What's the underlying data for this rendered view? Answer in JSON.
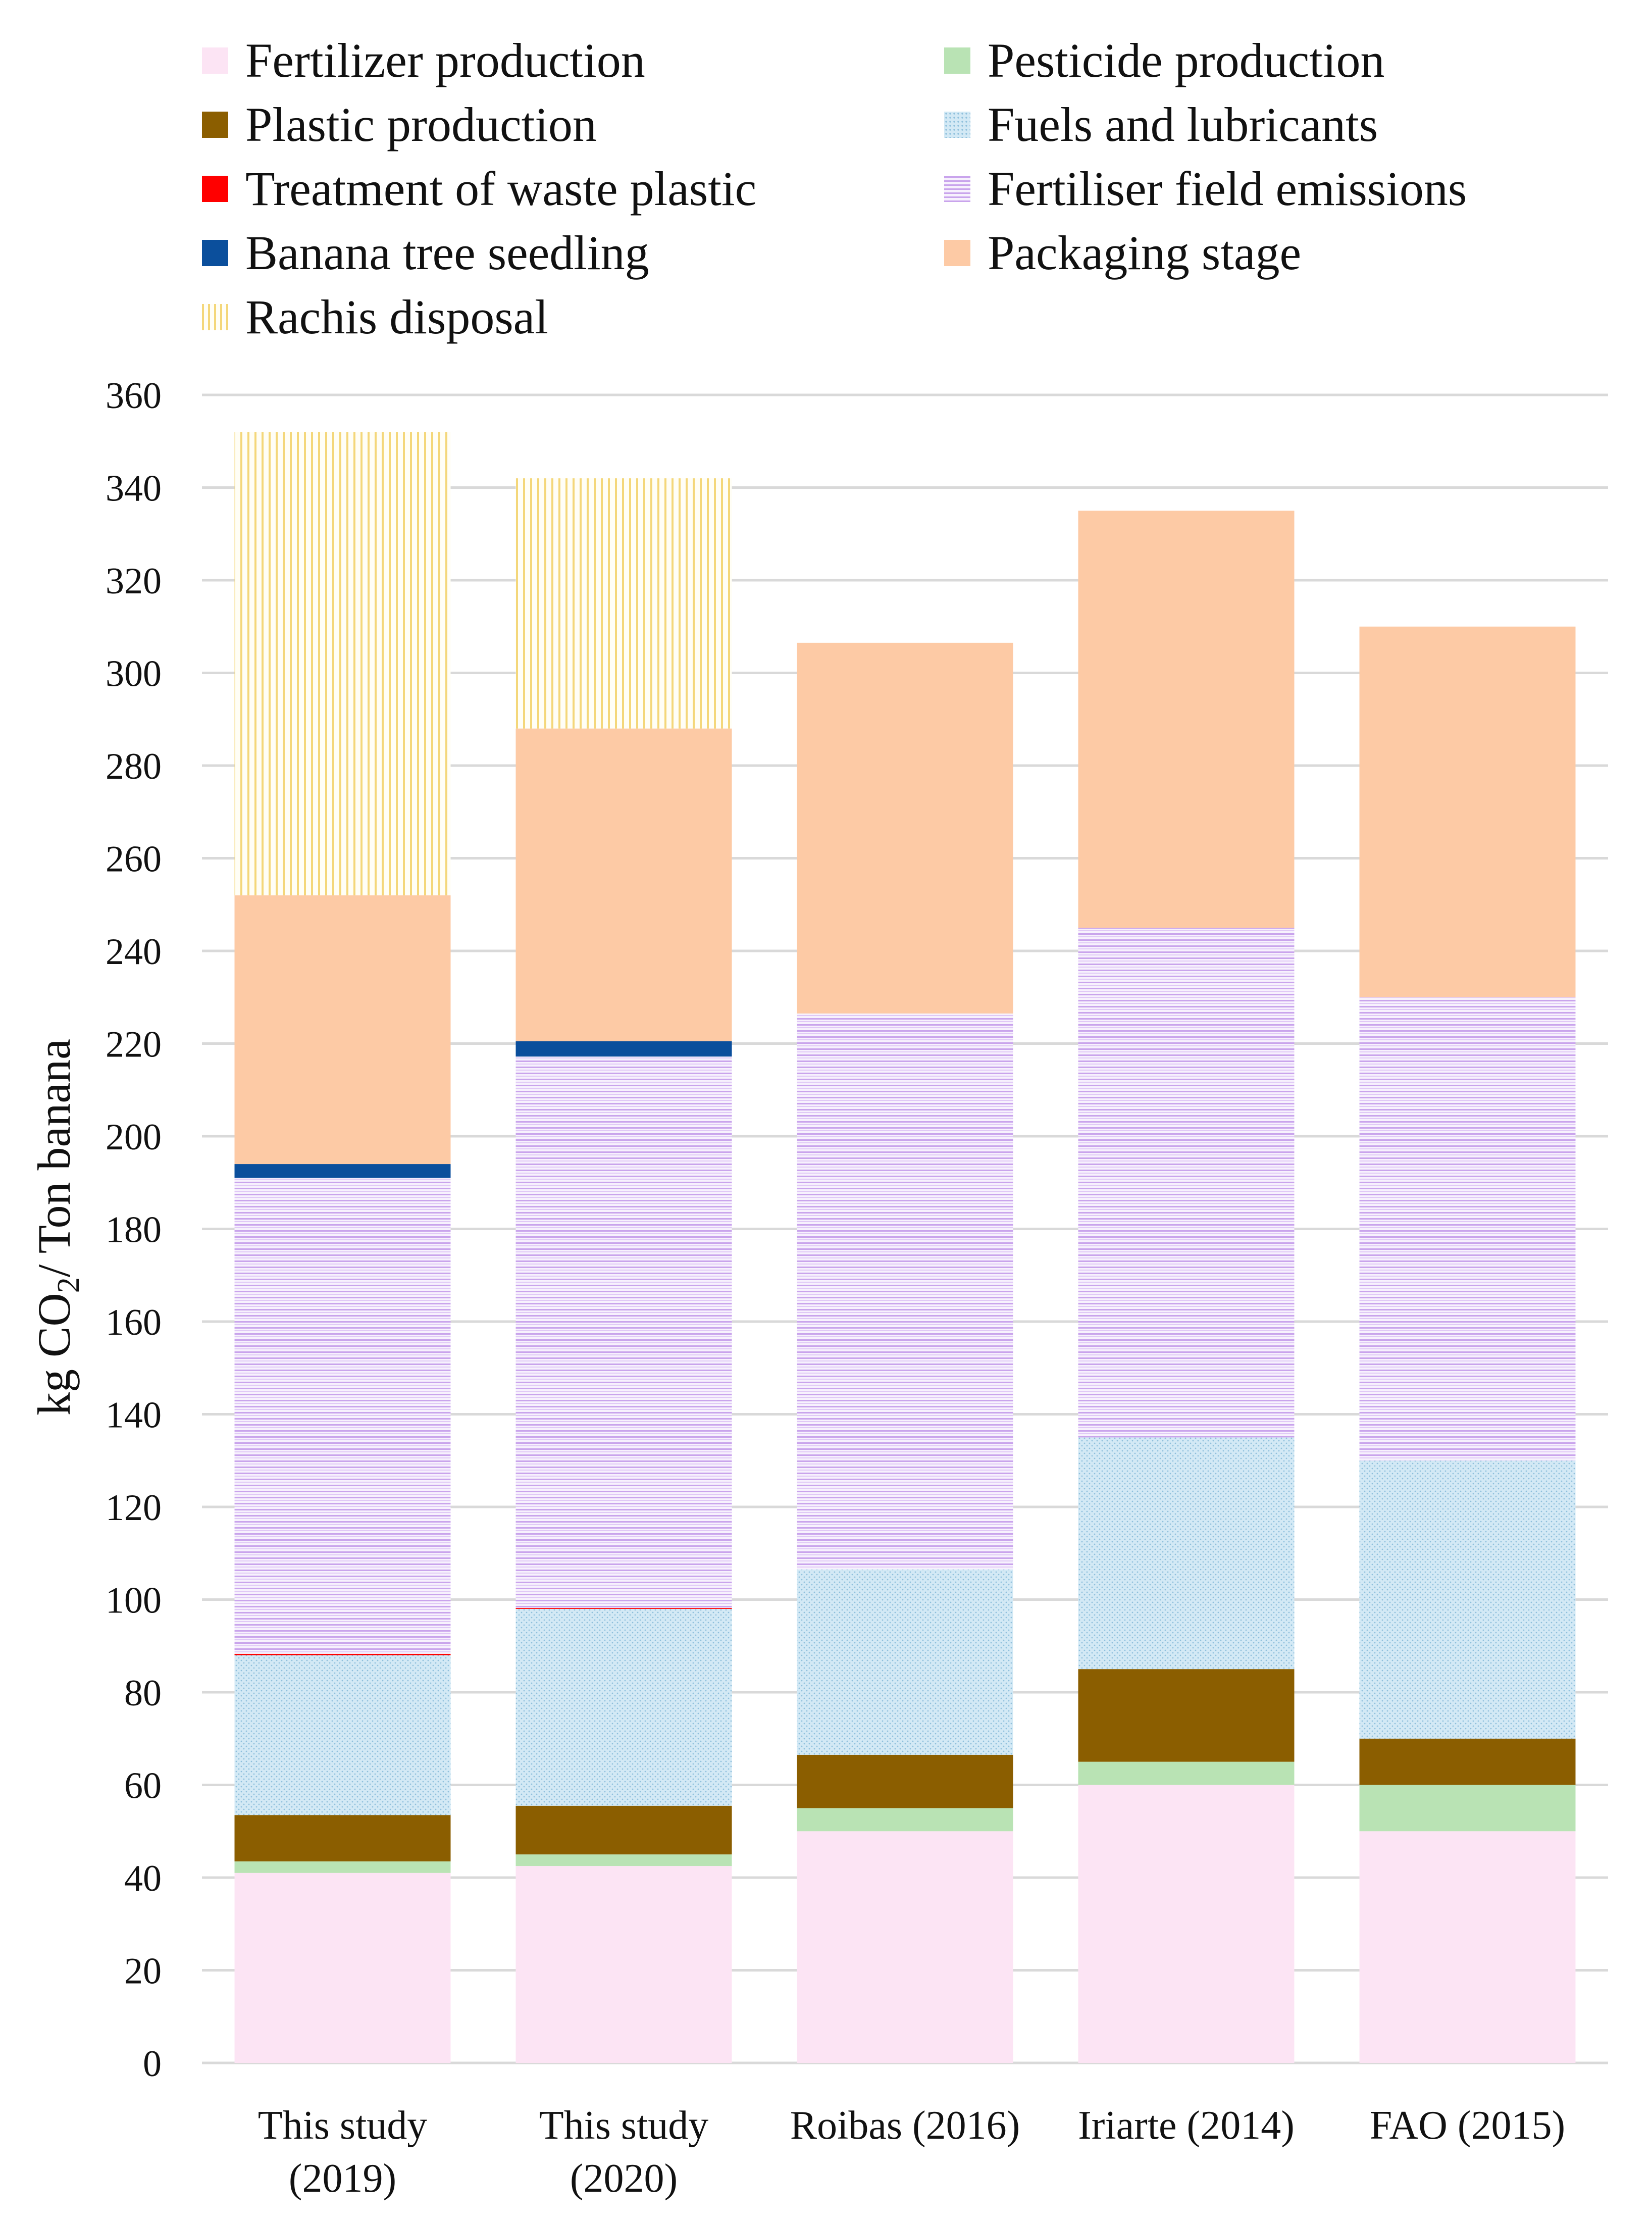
{
  "chart_data": {
    "type": "bar",
    "stacked": true,
    "title": "",
    "xlabel": "",
    "ylabel": "kg CO2/ Ton banana",
    "ylabel_parts": {
      "prefix": "kg CO",
      "subscript": "2",
      "suffix": "/ Ton banana"
    },
    "ylim": [
      0,
      360
    ],
    "ytick_step": 20,
    "ytick_labels": [
      "0",
      "20",
      "40",
      "60",
      "80",
      "100",
      "120",
      "140",
      "160",
      "180",
      "200",
      "220",
      "240",
      "260",
      "280",
      "300",
      "320",
      "340",
      "360"
    ],
    "grid": true,
    "legend_position": "top",
    "categories": [
      {
        "line1": "This study",
        "line2": "(2019)"
      },
      {
        "line1": "This study",
        "line2": "(2020)"
      },
      {
        "line1": "Roibas (2016)",
        "line2": ""
      },
      {
        "line1": "Iriarte (2014)",
        "line2": ""
      },
      {
        "line1": "FAO (2015)",
        "line2": ""
      }
    ],
    "series": [
      {
        "name": "Fertilizer production",
        "color": "#fce4f4",
        "pattern": "solid",
        "values": [
          41,
          42.5,
          50,
          60,
          50
        ]
      },
      {
        "name": "Pesticide production",
        "color": "#b9e3b4",
        "pattern": "solid",
        "values": [
          2.5,
          2.5,
          5,
          5,
          10
        ]
      },
      {
        "name": "Plastic production",
        "color": "#8b5e00",
        "pattern": "solid",
        "values": [
          10,
          10.5,
          11.5,
          20,
          10
        ]
      },
      {
        "name": "Fuels and lubricants",
        "color": "#d3e9f5",
        "pattern": "dots",
        "values": [
          34.5,
          42.5,
          40,
          50,
          60
        ]
      },
      {
        "name": "Treatment of waste plastic",
        "color": "#ff0000",
        "pattern": "solid",
        "values": [
          0.3,
          0.2,
          0,
          0,
          0
        ]
      },
      {
        "name": "Fertiliser field emissions",
        "color": "#f2e9fc",
        "pattern": "hlines",
        "values": [
          102.7,
          119,
          120,
          110,
          100
        ]
      },
      {
        "name": "Banana tree seedling",
        "color": "#0b4f9c",
        "pattern": "solid",
        "values": [
          3,
          3.3,
          0,
          0,
          0
        ]
      },
      {
        "name": "Packaging stage",
        "color": "#fdcaa5",
        "pattern": "solid",
        "values": [
          58,
          67.5,
          80,
          90,
          80
        ]
      },
      {
        "name": "Rachis disposal",
        "color": "#fffdf2",
        "pattern": "vlines",
        "values": [
          100,
          54,
          0,
          0,
          0
        ]
      }
    ],
    "legend_order": [
      "Fertilizer production",
      "Pesticide production",
      "Plastic production",
      "Fuels and lubricants",
      "Treatment of waste plastic",
      "Fertiliser field emissions",
      "Banana tree seedling",
      "Packaging stage",
      "Rachis disposal"
    ]
  }
}
